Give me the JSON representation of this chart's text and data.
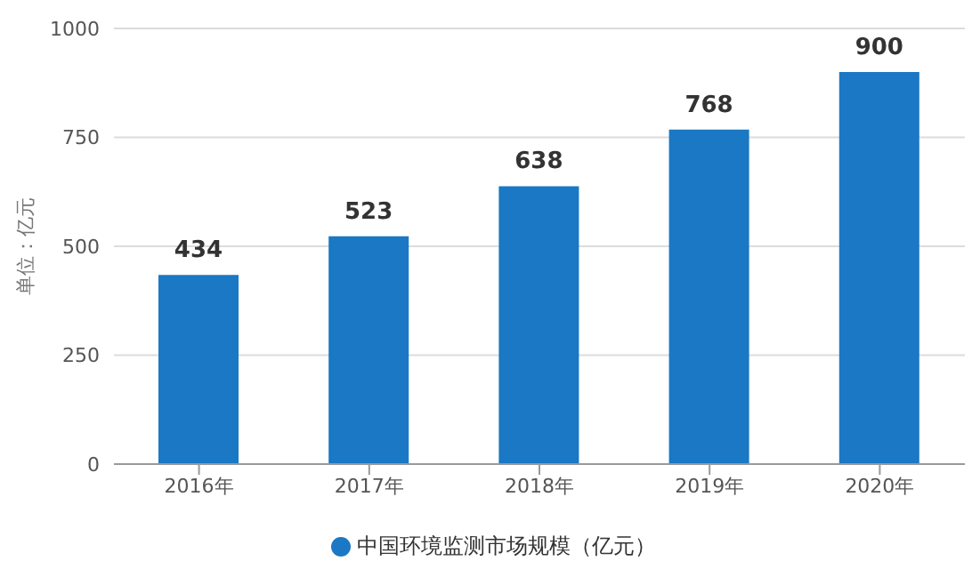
{
  "chart_data": {
    "type": "bar",
    "ylabel": "单位：亿元",
    "categories": [
      "2016年",
      "2017年",
      "2018年",
      "2019年",
      "2020年"
    ],
    "series": [
      {
        "name": "中国环境监测市场规模（亿元）",
        "color": "#1a78c4",
        "values": [
          434,
          523,
          638,
          768,
          900
        ]
      }
    ],
    "ylim": [
      0,
      1000
    ],
    "yticks": [
      0,
      250,
      500,
      750,
      1000
    ],
    "grid": "y",
    "legend": "bottom",
    "data_labels": true
  }
}
